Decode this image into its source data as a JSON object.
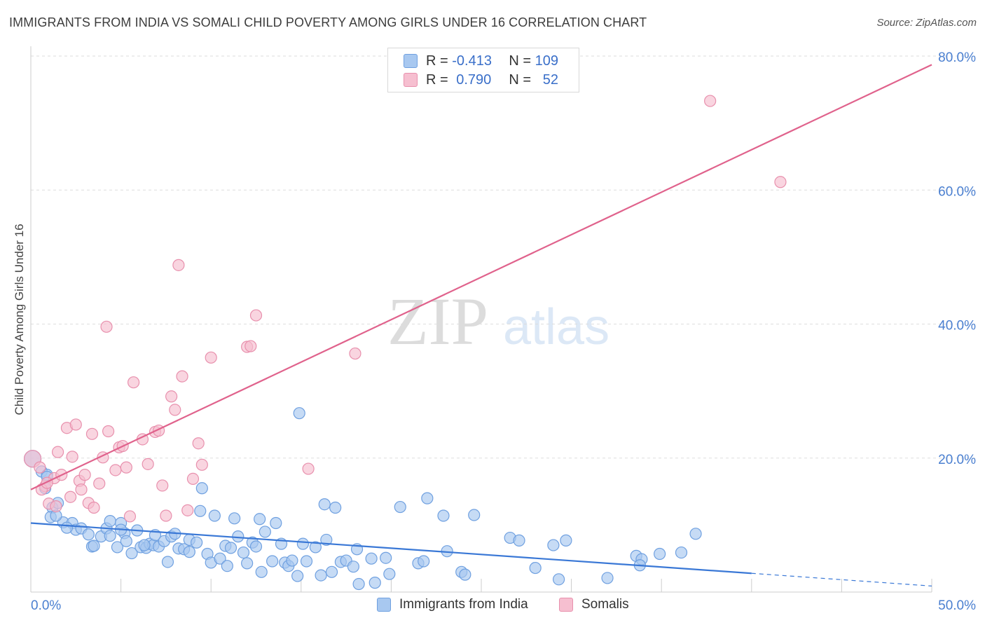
{
  "title": "IMMIGRANTS FROM INDIA VS SOMALI CHILD POVERTY AMONG GIRLS UNDER 16 CORRELATION CHART",
  "source": "Source: ZipAtlas.com",
  "watermark": {
    "zip": "ZIP",
    "atlas": "atlas"
  },
  "legend": {
    "rows": [
      {
        "r_label": "R =",
        "r_value": "-0.413",
        "n_label": "N =",
        "n_value": "109",
        "color": "#a8c8f0",
        "border": "#6fa0e0"
      },
      {
        "r_label": "R =",
        "r_value": "0.790",
        "n_label": "N =",
        "n_value": "52",
        "color": "#f6bfd0",
        "border": "#e890ad"
      }
    ]
  },
  "bottom_legend": [
    {
      "label": "Immigrants from India",
      "color": "#a8c8f0",
      "border": "#6fa0e0"
    },
    {
      "label": "Somalis",
      "color": "#f6bfd0",
      "border": "#e890ad"
    }
  ],
  "chart_data": {
    "type": "scatter",
    "title": "IMMIGRANTS FROM INDIA VS SOMALI CHILD POVERTY AMONG GIRLS UNDER 16 CORRELATION CHART",
    "xlabel": "",
    "ylabel": "Child Poverty Among Girls Under 16",
    "xlim": [
      0,
      50
    ],
    "ylim": [
      0,
      80
    ],
    "x_tick_labels": [
      "0.0%",
      "50.0%"
    ],
    "y_tick_labels": [
      "20.0%",
      "40.0%",
      "60.0%",
      "80.0%"
    ],
    "y_ticks": [
      20,
      40,
      60,
      80
    ],
    "grid": true,
    "legend_position": "top-center",
    "series": [
      {
        "name": "Immigrants from India",
        "color": "#6fa0e0",
        "fill": "#a8c8f0",
        "trend": {
          "x": [
            0,
            40
          ],
          "y": [
            10.3,
            2.8
          ],
          "dashed_to": [
            50,
            0.9
          ]
        },
        "points": [
          [
            0.1,
            19.9
          ],
          [
            0.6,
            18.0
          ],
          [
            0.9,
            17.5
          ],
          [
            0.8,
            15.5
          ],
          [
            1.2,
            12.6
          ],
          [
            1.1,
            11.2
          ],
          [
            1.5,
            13.3
          ],
          [
            1.8,
            10.4
          ],
          [
            2.3,
            10.3
          ],
          [
            2.5,
            9.3
          ],
          [
            2.8,
            9.5
          ],
          [
            3.2,
            8.6
          ],
          [
            3.4,
            6.8
          ],
          [
            3.9,
            8.3
          ],
          [
            4.2,
            9.5
          ],
          [
            4.4,
            8.4
          ],
          [
            4.4,
            10.6
          ],
          [
            4.8,
            6.7
          ],
          [
            5.0,
            10.3
          ],
          [
            5.2,
            8.8
          ],
          [
            5.3,
            7.6
          ],
          [
            5.6,
            5.8
          ],
          [
            5.9,
            9.2
          ],
          [
            6.1,
            6.7
          ],
          [
            6.4,
            6.6
          ],
          [
            6.6,
            7.2
          ],
          [
            6.8,
            7.0
          ],
          [
            6.9,
            8.5
          ],
          [
            7.1,
            6.8
          ],
          [
            7.4,
            7.6
          ],
          [
            7.6,
            4.5
          ],
          [
            7.8,
            8.3
          ],
          [
            8.0,
            8.7
          ],
          [
            8.2,
            6.5
          ],
          [
            8.5,
            6.4
          ],
          [
            8.8,
            7.8
          ],
          [
            8.8,
            6.0
          ],
          [
            9.2,
            7.4
          ],
          [
            9.4,
            12.1
          ],
          [
            9.5,
            15.5
          ],
          [
            9.8,
            5.7
          ],
          [
            10.0,
            4.4
          ],
          [
            10.2,
            11.4
          ],
          [
            10.5,
            5.0
          ],
          [
            10.8,
            6.9
          ],
          [
            10.9,
            3.9
          ],
          [
            11.1,
            6.6
          ],
          [
            11.3,
            11.0
          ],
          [
            11.5,
            8.3
          ],
          [
            11.8,
            5.9
          ],
          [
            12.0,
            4.3
          ],
          [
            12.3,
            7.4
          ],
          [
            12.5,
            6.8
          ],
          [
            12.7,
            10.9
          ],
          [
            12.8,
            3.0
          ],
          [
            13.0,
            9.0
          ],
          [
            13.4,
            4.6
          ],
          [
            13.6,
            10.3
          ],
          [
            13.9,
            7.2
          ],
          [
            14.1,
            4.4
          ],
          [
            14.3,
            3.9
          ],
          [
            14.5,
            4.7
          ],
          [
            14.8,
            2.4
          ],
          [
            14.9,
            26.7
          ],
          [
            15.1,
            7.2
          ],
          [
            15.3,
            4.6
          ],
          [
            15.8,
            6.7
          ],
          [
            16.1,
            2.5
          ],
          [
            16.3,
            13.1
          ],
          [
            16.4,
            7.8
          ],
          [
            16.7,
            3.0
          ],
          [
            16.9,
            12.6
          ],
          [
            17.2,
            4.5
          ],
          [
            17.5,
            4.7
          ],
          [
            17.9,
            3.8
          ],
          [
            18.1,
            6.4
          ],
          [
            18.2,
            1.2
          ],
          [
            18.9,
            5.0
          ],
          [
            19.1,
            1.4
          ],
          [
            19.7,
            5.1
          ],
          [
            19.9,
            2.7
          ],
          [
            20.5,
            12.7
          ],
          [
            21.5,
            4.3
          ],
          [
            22.0,
            14.0
          ],
          [
            22.9,
            11.4
          ],
          [
            23.1,
            6.1
          ],
          [
            23.9,
            3.0
          ],
          [
            24.1,
            2.6
          ],
          [
            24.6,
            11.5
          ],
          [
            26.6,
            8.1
          ],
          [
            27.1,
            7.7
          ],
          [
            28.0,
            3.6
          ],
          [
            29.0,
            7.0
          ],
          [
            29.3,
            1.9
          ],
          [
            29.7,
            7.7
          ],
          [
            32.0,
            2.1
          ],
          [
            33.6,
            5.4
          ],
          [
            33.9,
            4.9
          ],
          [
            33.8,
            4.0
          ],
          [
            34.9,
            5.7
          ],
          [
            36.1,
            5.9
          ],
          [
            36.9,
            8.7
          ],
          [
            21.8,
            4.6
          ],
          [
            5.0,
            9.3
          ],
          [
            6.3,
            7.0
          ],
          [
            2.0,
            9.6
          ],
          [
            3.5,
            6.9
          ],
          [
            1.4,
            11.4
          ],
          [
            0.9,
            17.2
          ]
        ]
      },
      {
        "name": "Somalis",
        "color": "#e890ad",
        "fill": "#f6bfd0",
        "trend": {
          "x": [
            0,
            50
          ],
          "y": [
            15.3,
            78.7
          ]
        },
        "points": [
          [
            0.1,
            19.9
          ],
          [
            0.5,
            18.6
          ],
          [
            0.8,
            15.8
          ],
          [
            1.0,
            13.2
          ],
          [
            1.3,
            17.0
          ],
          [
            1.5,
            20.9
          ],
          [
            1.7,
            17.5
          ],
          [
            2.0,
            24.5
          ],
          [
            2.2,
            14.2
          ],
          [
            2.3,
            20.2
          ],
          [
            2.5,
            25.0
          ],
          [
            2.7,
            16.6
          ],
          [
            2.8,
            15.3
          ],
          [
            3.0,
            17.5
          ],
          [
            3.2,
            13.3
          ],
          [
            3.4,
            23.6
          ],
          [
            3.5,
            12.6
          ],
          [
            3.8,
            16.2
          ],
          [
            4.0,
            20.1
          ],
          [
            4.2,
            39.6
          ],
          [
            4.3,
            24.0
          ],
          [
            4.7,
            18.2
          ],
          [
            4.9,
            21.6
          ],
          [
            5.1,
            21.8
          ],
          [
            5.3,
            18.6
          ],
          [
            5.5,
            11.3
          ],
          [
            5.7,
            31.3
          ],
          [
            6.2,
            22.8
          ],
          [
            6.5,
            19.1
          ],
          [
            6.9,
            23.9
          ],
          [
            7.1,
            24.1
          ],
          [
            7.3,
            15.9
          ],
          [
            7.5,
            11.4
          ],
          [
            7.8,
            29.2
          ],
          [
            8.0,
            27.2
          ],
          [
            8.2,
            48.8
          ],
          [
            8.4,
            32.2
          ],
          [
            8.7,
            12.2
          ],
          [
            9.0,
            16.9
          ],
          [
            9.3,
            22.2
          ],
          [
            9.5,
            19.0
          ],
          [
            10.0,
            35.0
          ],
          [
            12.0,
            36.6
          ],
          [
            12.2,
            36.7
          ],
          [
            12.5,
            41.3
          ],
          [
            15.4,
            18.4
          ],
          [
            18.0,
            35.6
          ],
          [
            37.7,
            73.3
          ],
          [
            41.6,
            61.2
          ],
          [
            0.6,
            15.3
          ],
          [
            0.9,
            16.3
          ],
          [
            1.4,
            12.8
          ]
        ]
      }
    ]
  }
}
